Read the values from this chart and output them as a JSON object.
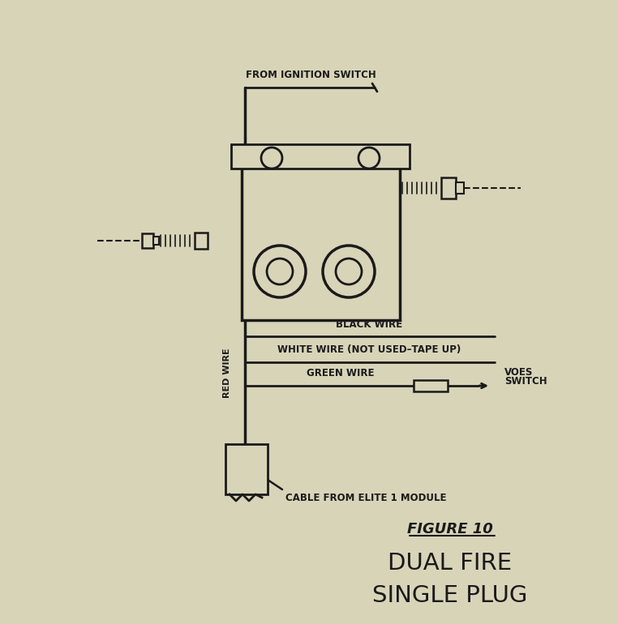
{
  "bg_color": "#d8d4b8",
  "line_color": "#1a1a1a",
  "title_line1": "FIGURE 10",
  "title_line2": "DUAL FIRE",
  "title_line3": "SINGLE PLUG",
  "label_ignition": "FROM IGNITION SWITCH",
  "label_black": "BLACK WIRE",
  "label_white": "WHITE WIRE (NOT USED–TAPE UP)",
  "label_green": "GREEN WIRE",
  "label_voes_1": "VOES",
  "label_voes_2": "SWITCH",
  "label_red": "RED WIRE",
  "label_cable": "CABLE FROM ELITE 1 MODULE",
  "fig_width": 7.62,
  "fig_height": 7.7,
  "dpi": 100
}
